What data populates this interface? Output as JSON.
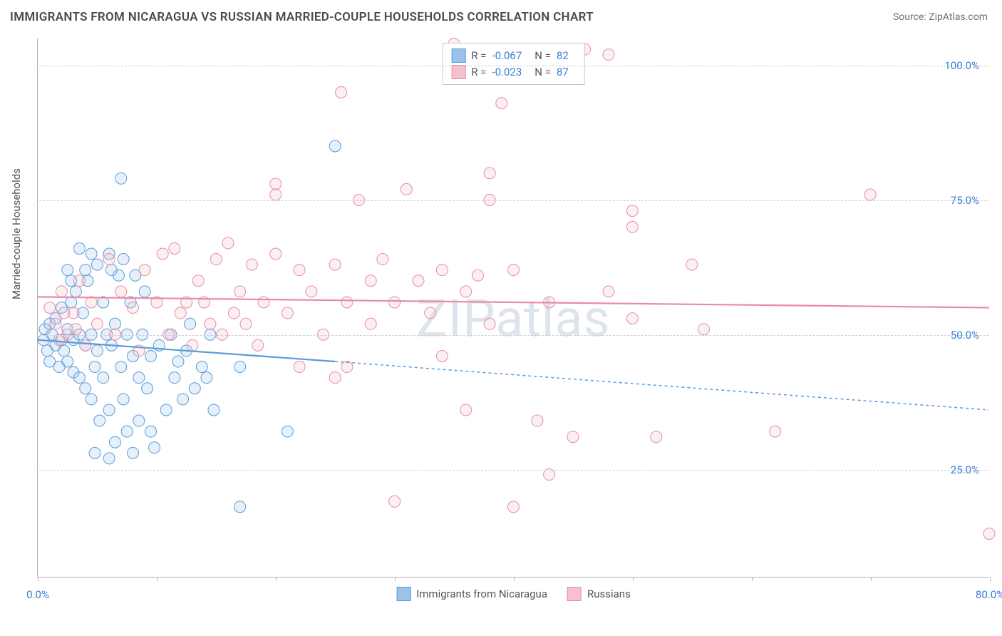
{
  "title": "IMMIGRANTS FROM NICARAGUA VS RUSSIAN MARRIED-COUPLE HOUSEHOLDS CORRELATION CHART",
  "source": "Source: ZipAtlas.com",
  "watermark": "ZIPatlas",
  "ylabel": "Married-couple Households",
  "chart": {
    "type": "scatter-with-trendlines",
    "xlim": [
      0,
      80
    ],
    "ylim": [
      5,
      105
    ],
    "x_ticks": [
      0,
      10,
      20,
      30,
      40,
      50,
      60,
      70,
      80
    ],
    "x_tick_labels_shown": {
      "0": "0.0%",
      "80": "80.0%"
    },
    "y_gridlines": [
      25,
      50,
      75,
      100
    ],
    "y_tick_labels": {
      "25": "25.0%",
      "50": "50.0%",
      "75": "75.0%",
      "100": "100.0%"
    },
    "background_color": "#ffffff",
    "grid_color": "#d0d0d0",
    "axis_color": "#b0b0b0",
    "tick_label_color": "#3b7dd8",
    "tick_label_fontsize": 15,
    "marker_radius": 8,
    "marker_fill_opacity": 0.25,
    "trendline_width": 2.2,
    "trendline_dash_extension": "4,4"
  },
  "series": [
    {
      "key": "nicaragua",
      "label": "Immigrants from Nicaragua",
      "color_fill": "#9cc2ec",
      "color_stroke": "#5a9bd8",
      "stats": {
        "R": "-0.067",
        "N": "82"
      },
      "trendline": {
        "x1": 0,
        "y1": 49,
        "x2": 25,
        "y2": 45,
        "x2_ext": 80,
        "y2_ext": 36
      },
      "points": [
        [
          0.5,
          49
        ],
        [
          0.6,
          51
        ],
        [
          0.8,
          47
        ],
        [
          1,
          52
        ],
        [
          1,
          45
        ],
        [
          1.2,
          50
        ],
        [
          1.5,
          53
        ],
        [
          1.5,
          48
        ],
        [
          1.8,
          44
        ],
        [
          2,
          55
        ],
        [
          2,
          49
        ],
        [
          2.2,
          47
        ],
        [
          2.5,
          51
        ],
        [
          2.5,
          45
        ],
        [
          2.8,
          56
        ],
        [
          3,
          43
        ],
        [
          3,
          49
        ],
        [
          3.2,
          58
        ],
        [
          3.5,
          42
        ],
        [
          3.5,
          50
        ],
        [
          3.8,
          54
        ],
        [
          4,
          40
        ],
        [
          4,
          48
        ],
        [
          4.2,
          60
        ],
        [
          4.5,
          38
        ],
        [
          4.5,
          50
        ],
        [
          4.8,
          44
        ],
        [
          5,
          63
        ],
        [
          5,
          47
        ],
        [
          5.2,
          34
        ],
        [
          5.5,
          56
        ],
        [
          5.5,
          42
        ],
        [
          5.8,
          50
        ],
        [
          6,
          65
        ],
        [
          6,
          36
        ],
        [
          6.2,
          48
        ],
        [
          6.5,
          30
        ],
        [
          6.5,
          52
        ],
        [
          6.8,
          61
        ],
        [
          7,
          44
        ],
        [
          7,
          79
        ],
        [
          7.2,
          38
        ],
        [
          7.5,
          32
        ],
        [
          7.5,
          50
        ],
        [
          7.8,
          56
        ],
        [
          8,
          28
        ],
        [
          8,
          46
        ],
        [
          8.2,
          61
        ],
        [
          8.5,
          42
        ],
        [
          8.5,
          34
        ],
        [
          8.8,
          50
        ],
        [
          6,
          27
        ],
        [
          9,
          58
        ],
        [
          9.2,
          40
        ],
        [
          9.5,
          46
        ],
        [
          9.5,
          32
        ],
        [
          9.8,
          29
        ],
        [
          3.5,
          66
        ],
        [
          10.2,
          48
        ],
        [
          4,
          62
        ],
        [
          4.5,
          65
        ],
        [
          10.8,
          36
        ],
        [
          2.8,
          60
        ],
        [
          11.2,
          50
        ],
        [
          11.5,
          42
        ],
        [
          11.8,
          45
        ],
        [
          6.2,
          62
        ],
        [
          12.2,
          38
        ],
        [
          12.5,
          47
        ],
        [
          12.8,
          52
        ],
        [
          2.5,
          62
        ],
        [
          13.2,
          40
        ],
        [
          7.2,
          64
        ],
        [
          13.8,
          44
        ],
        [
          4.8,
          28
        ],
        [
          14.2,
          42
        ],
        [
          14.5,
          50
        ],
        [
          14.8,
          36
        ],
        [
          17,
          18
        ],
        [
          17,
          44
        ],
        [
          21,
          32
        ],
        [
          25,
          85
        ]
      ]
    },
    {
      "key": "russians",
      "label": "Russians",
      "color_fill": "#f4c1cd",
      "color_stroke": "#e88ba3",
      "stats": {
        "R": "-0.023",
        "N": "87"
      },
      "trendline": {
        "x1": 0,
        "y1": 57,
        "x2": 80,
        "y2": 55
      },
      "points": [
        [
          1,
          55
        ],
        [
          1.5,
          52
        ],
        [
          2,
          58
        ],
        [
          2.5,
          50
        ],
        [
          3,
          54
        ],
        [
          3.5,
          60
        ],
        [
          4,
          48
        ],
        [
          4.5,
          56
        ],
        [
          5,
          52
        ],
        [
          1.8,
          49
        ],
        [
          6,
          64
        ],
        [
          6.5,
          50
        ],
        [
          7,
          58
        ],
        [
          2.2,
          54
        ],
        [
          8,
          55
        ],
        [
          8.5,
          47
        ],
        [
          9,
          62
        ],
        [
          3.2,
          51
        ],
        [
          10,
          56
        ],
        [
          10.5,
          65
        ],
        [
          11,
          50
        ],
        [
          11.5,
          66
        ],
        [
          12,
          54
        ],
        [
          12.5,
          56
        ],
        [
          13,
          48
        ],
        [
          13.5,
          60
        ],
        [
          14,
          56
        ],
        [
          14.5,
          52
        ],
        [
          15,
          64
        ],
        [
          15.5,
          50
        ],
        [
          16,
          67
        ],
        [
          16.5,
          54
        ],
        [
          17,
          58
        ],
        [
          17.5,
          52
        ],
        [
          18,
          63
        ],
        [
          18.5,
          48
        ],
        [
          19,
          56
        ],
        [
          20,
          65
        ],
        [
          20,
          78
        ],
        [
          20,
          76
        ],
        [
          21,
          54
        ],
        [
          22,
          62
        ],
        [
          22,
          44
        ],
        [
          23,
          58
        ],
        [
          24,
          50
        ],
        [
          25,
          42
        ],
        [
          25,
          63
        ],
        [
          25.5,
          95
        ],
        [
          26,
          56
        ],
        [
          26,
          44
        ],
        [
          27,
          75
        ],
        [
          28,
          52
        ],
        [
          28,
          60
        ],
        [
          29,
          64
        ],
        [
          30,
          56
        ],
        [
          30,
          19
        ],
        [
          31,
          77
        ],
        [
          32,
          60
        ],
        [
          33,
          54
        ],
        [
          34,
          62
        ],
        [
          34,
          46
        ],
        [
          35,
          104
        ],
        [
          36,
          58
        ],
        [
          36,
          36
        ],
        [
          37,
          61
        ],
        [
          38,
          75
        ],
        [
          38,
          80
        ],
        [
          38,
          52
        ],
        [
          39,
          93
        ],
        [
          40,
          62
        ],
        [
          40,
          18
        ],
        [
          42,
          34
        ],
        [
          43,
          56
        ],
        [
          43,
          24
        ],
        [
          45,
          31
        ],
        [
          46,
          103
        ],
        [
          48,
          102
        ],
        [
          48,
          58
        ],
        [
          50,
          73
        ],
        [
          52,
          31
        ],
        [
          50,
          70
        ],
        [
          50,
          53
        ],
        [
          55,
          63
        ],
        [
          56,
          51
        ],
        [
          62,
          32
        ],
        [
          70,
          76
        ],
        [
          80,
          13
        ]
      ]
    }
  ],
  "stat_legend_labels": {
    "R": "R =",
    "N": "N ="
  },
  "bottom_legend": true
}
